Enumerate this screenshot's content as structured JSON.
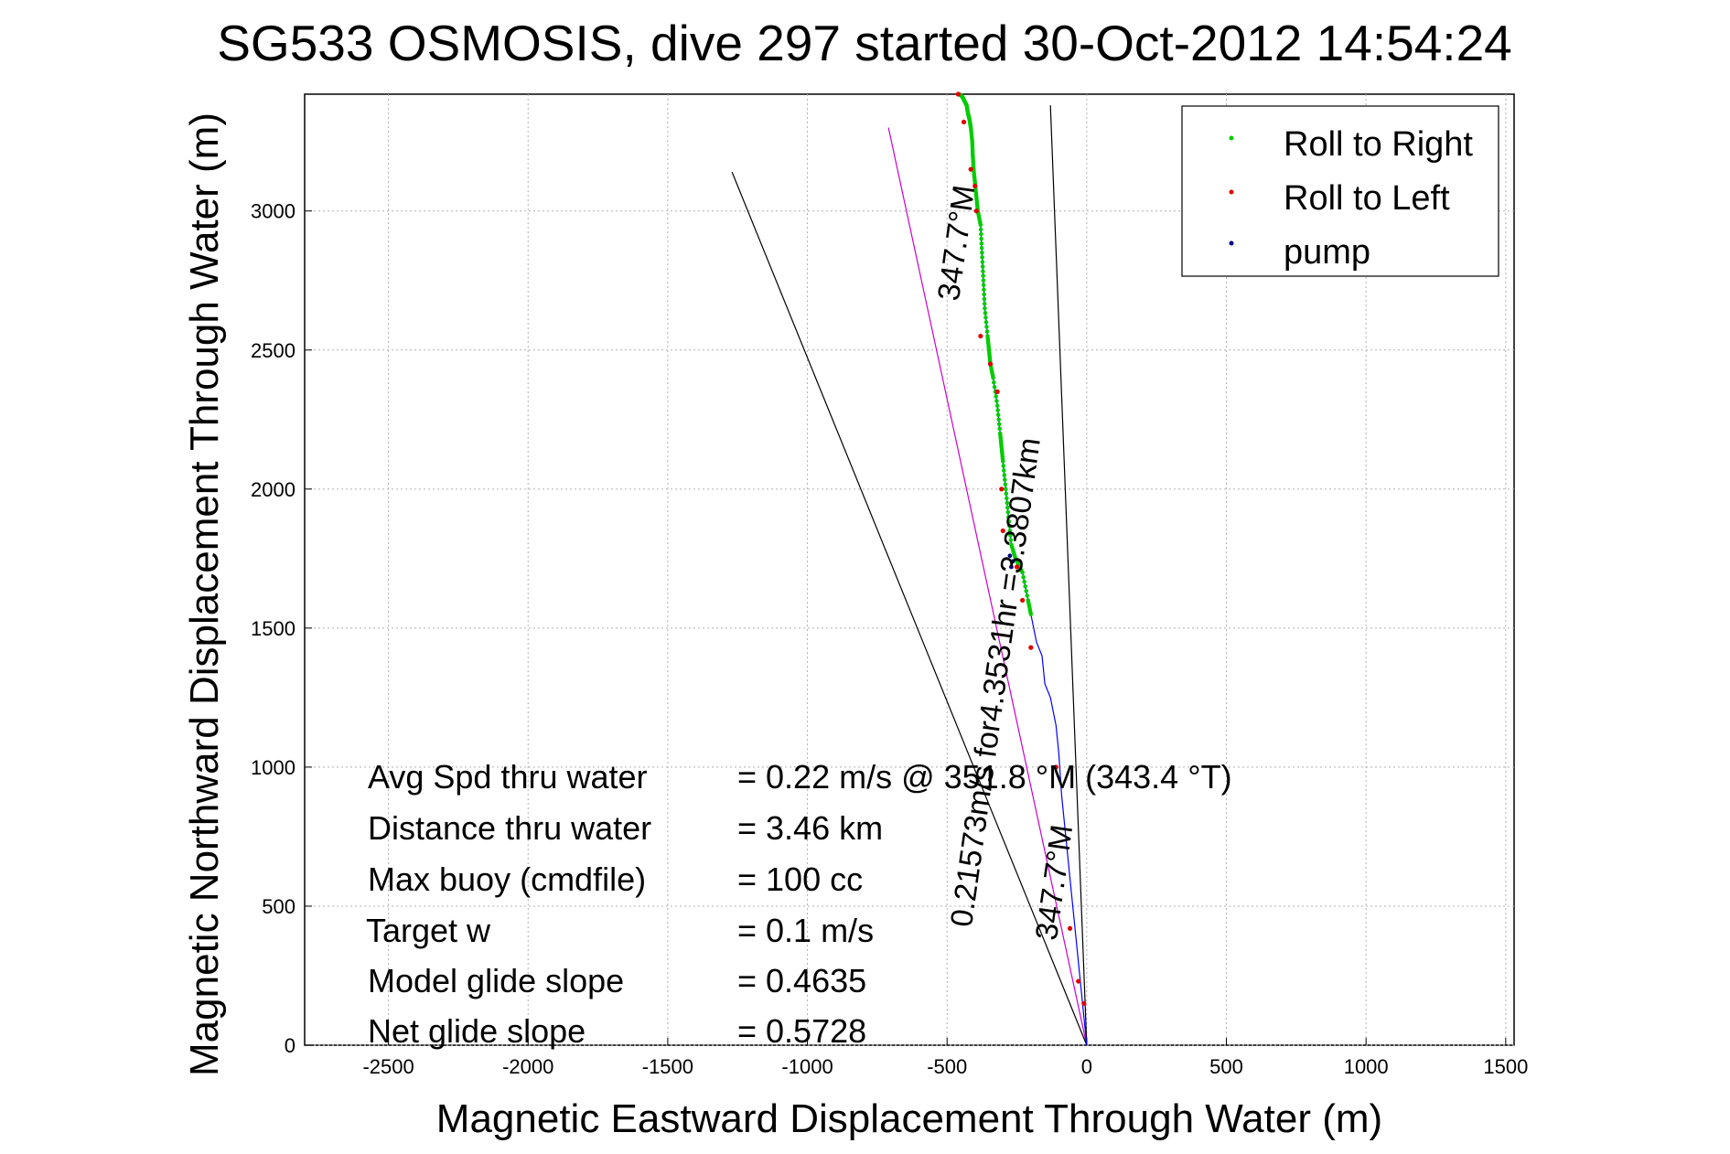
{
  "chart_data": {
    "type": "line",
    "title": "SG533 OSMOSIS, dive 297 started 30-Oct-2012 14:54:24",
    "xlabel": "Magnetic Eastward Displacement Through Water (m)",
    "ylabel": "Magnetic Northward Displacement Through Water (m)",
    "xlim": [
      -2800,
      1530
    ],
    "ylim": [
      0,
      3420
    ],
    "xticks": [
      -2500,
      -2000,
      -1500,
      -1000,
      -500,
      0,
      500,
      1000,
      1500
    ],
    "yticks": [
      0,
      500,
      1000,
      1500,
      2000,
      2500,
      3000
    ],
    "grid": true,
    "legend": {
      "placement": "top-right",
      "entries": [
        "Roll to Right",
        "Roll to Left",
        "pump"
      ]
    },
    "colors": {
      "roll_right": "#00cc00",
      "roll_left": "#e00000",
      "pump": "#000080",
      "track": "#0000ff",
      "heading": "#cc00cc",
      "wedge": "#000000"
    },
    "series": [
      {
        "name": "track",
        "x": [
          0,
          -10,
          -25,
          -40,
          -60,
          -70,
          -90,
          -100,
          -110,
          -120,
          -130,
          -150,
          -160,
          -180,
          -200,
          -210,
          -230,
          -255,
          -270,
          -280,
          -290,
          -300,
          -305,
          -310,
          -320,
          -335,
          -345,
          -350,
          -355,
          -365,
          -370,
          -375,
          -380,
          -390,
          -395,
          -400,
          -405,
          -408,
          -410,
          -415,
          -420,
          -425,
          -430,
          -440,
          -445,
          -455
        ],
        "y": [
          0,
          100,
          250,
          400,
          600,
          700,
          900,
          1050,
          1150,
          1200,
          1250,
          1300,
          1400,
          1450,
          1550,
          1600,
          1700,
          1750,
          1800,
          1900,
          2000,
          2100,
          2150,
          2200,
          2300,
          2400,
          2450,
          2500,
          2550,
          2650,
          2750,
          2850,
          2950,
          3000,
          3050,
          3100,
          3150,
          3200,
          3250,
          3300,
          3330,
          3350,
          3380,
          3400,
          3410,
          3420
        ]
      }
    ],
    "roll_left_points": [
      [
        -10,
        150
      ],
      [
        -30,
        230
      ],
      [
        -60,
        420
      ],
      [
        -110,
        1000
      ],
      [
        -200,
        1430
      ],
      [
        -230,
        1600
      ],
      [
        -250,
        1720
      ],
      [
        -300,
        1850
      ],
      [
        -305,
        2000
      ],
      [
        -320,
        2350
      ],
      [
        -345,
        2450
      ],
      [
        -380,
        2550
      ],
      [
        -395,
        3000
      ],
      [
        -415,
        3150
      ],
      [
        -400,
        3090
      ],
      [
        -440,
        3320
      ],
      [
        -460,
        3420
      ]
    ],
    "pump_points": [
      [
        -270,
        1720
      ],
      [
        -265,
        1740
      ],
      [
        -275,
        1760
      ]
    ],
    "lines": [
      {
        "name": "heading-line",
        "x": [
          0,
          -710
        ],
        "y": [
          0,
          3300
        ]
      },
      {
        "name": "wedge-left",
        "x": [
          0,
          -1270
        ],
        "y": [
          0,
          3140
        ]
      },
      {
        "name": "wedge-right",
        "x": [
          0,
          -130
        ],
        "y": [
          0,
          3380
        ]
      }
    ],
    "annotations": [
      {
        "text": "347.7°M",
        "x": -430,
        "y": 2880,
        "rotation": -82
      },
      {
        "text": "0.21573m/s for4.3531hr =3.3807km",
        "x": -290,
        "y": 1300,
        "rotation": -82
      },
      {
        "text": "347.7°M",
        "x": -80,
        "y": 580,
        "rotation": -82
      }
    ],
    "stats": [
      {
        "label": "Avg Spd thru water",
        "value": "=  0.22 m/s @ 351.8 °M (343.4 °T)"
      },
      {
        "label": "Distance thru water",
        "value": "=  3.46 km"
      },
      {
        "label": "Max buoy (cmdfile)",
        "value": "= 100 cc"
      },
      {
        "label": "Target w",
        "value": "= 0.1 m/s"
      },
      {
        "label": "Model glide slope",
        "value": "= 0.4635"
      },
      {
        "label": "Net glide slope",
        "value": "= 0.5728"
      }
    ]
  }
}
